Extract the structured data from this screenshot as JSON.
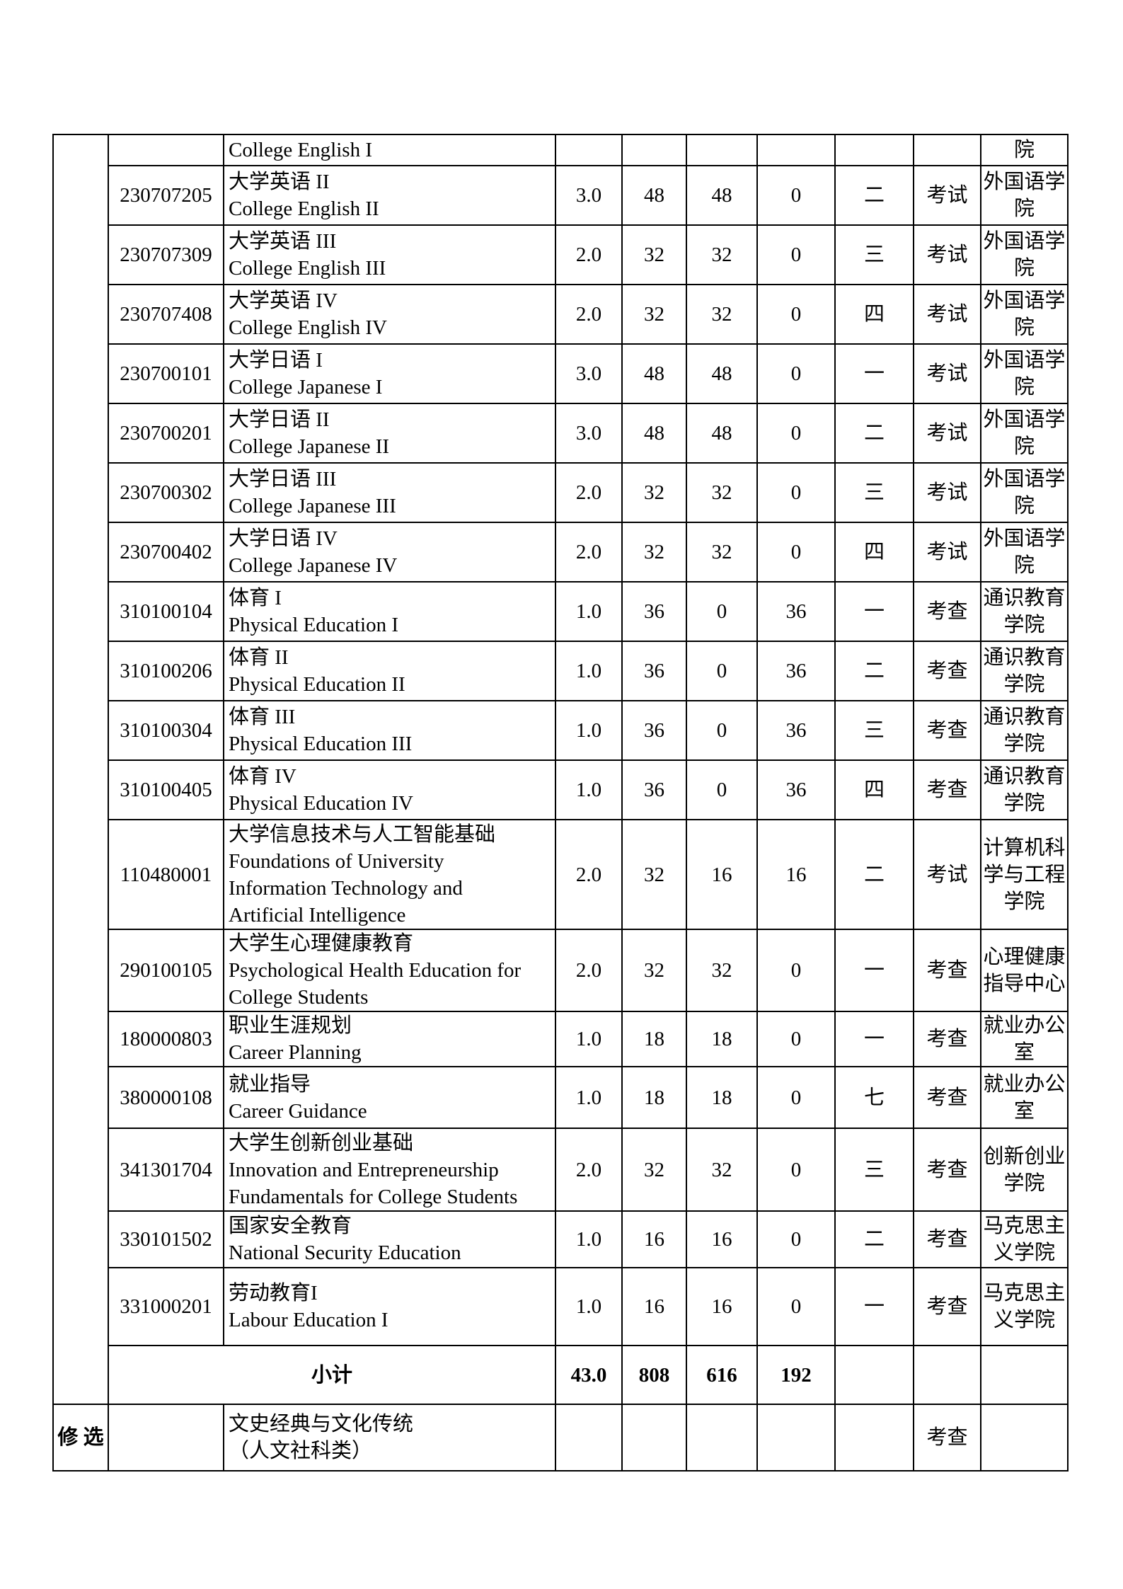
{
  "table": {
    "rows": [
      {
        "code": "",
        "zh": "",
        "en": "College English I",
        "credits": "",
        "total": "",
        "lecture": "",
        "practice": "",
        "semester": "",
        "exam": "",
        "dept": "院"
      },
      {
        "code": "230707205",
        "zh": "大学英语 II",
        "en": "College English II",
        "credits": "3.0",
        "total": "48",
        "lecture": "48",
        "practice": "0",
        "semester": "二",
        "exam": "考试",
        "dept": "外国语学\n院"
      },
      {
        "code": "230707309",
        "zh": "大学英语 III",
        "en": "College English III",
        "credits": "2.0",
        "total": "32",
        "lecture": "32",
        "practice": "0",
        "semester": "三",
        "exam": "考试",
        "dept": "外国语学\n院"
      },
      {
        "code": "230707408",
        "zh": "大学英语 IV",
        "en": "College English IV",
        "credits": "2.0",
        "total": "32",
        "lecture": "32",
        "practice": "0",
        "semester": "四",
        "exam": "考试",
        "dept": "外国语学\n院"
      },
      {
        "code": "230700101",
        "zh": "大学日语 I",
        "en": "College Japanese I",
        "credits": "3.0",
        "total": "48",
        "lecture": "48",
        "practice": "0",
        "semester": "一",
        "exam": "考试",
        "dept": "外国语学\n院"
      },
      {
        "code": "230700201",
        "zh": "大学日语 II",
        "en": "College Japanese II",
        "credits": "3.0",
        "total": "48",
        "lecture": "48",
        "practice": "0",
        "semester": "二",
        "exam": "考试",
        "dept": "外国语学\n院"
      },
      {
        "code": "230700302",
        "zh": "大学日语 III",
        "en": "College Japanese III",
        "credits": "2.0",
        "total": "32",
        "lecture": "32",
        "practice": "0",
        "semester": "三",
        "exam": "考试",
        "dept": "外国语学\n院"
      },
      {
        "code": "230700402",
        "zh": "大学日语 IV",
        "en": "College Japanese IV",
        "credits": "2.0",
        "total": "32",
        "lecture": "32",
        "practice": "0",
        "semester": "四",
        "exam": "考试",
        "dept": "外国语学\n院"
      },
      {
        "code": "310100104",
        "zh": "体育 I",
        "en": "Physical Education I",
        "credits": "1.0",
        "total": "36",
        "lecture": "0",
        "practice": "36",
        "semester": "一",
        "exam": "考查",
        "dept": "通识教育\n学院"
      },
      {
        "code": "310100206",
        "zh": "体育 II",
        "en": "Physical Education II",
        "credits": "1.0",
        "total": "36",
        "lecture": "0",
        "practice": "36",
        "semester": "二",
        "exam": "考查",
        "dept": "通识教育\n学院"
      },
      {
        "code": "310100304",
        "zh": "体育 III",
        "en": "Physical Education III",
        "credits": "1.0",
        "total": "36",
        "lecture": "0",
        "practice": "36",
        "semester": "三",
        "exam": "考查",
        "dept": "通识教育\n学院"
      },
      {
        "code": "310100405",
        "zh": "体育 IV",
        "en": "Physical Education IV",
        "credits": "1.0",
        "total": "36",
        "lecture": "0",
        "practice": "36",
        "semester": "四",
        "exam": "考查",
        "dept": "通识教育\n学院"
      },
      {
        "code": "110480001",
        "zh": "大学信息技术与人工智能基础",
        "en": "Foundations of University\nInformation Technology and\nArtificial Intelligence",
        "credits": "2.0",
        "total": "32",
        "lecture": "16",
        "practice": "16",
        "semester": "二",
        "exam": "考试",
        "dept": "计算机科\n学与工程\n学院"
      },
      {
        "code": "290100105",
        "zh": "大学生心理健康教育",
        "en": "Psychological Health Education for\nCollege Students",
        "credits": "2.0",
        "total": "32",
        "lecture": "32",
        "practice": "0",
        "semester": "一",
        "exam": "考查",
        "dept": "心理健康\n指导中心"
      },
      {
        "code": "180000803",
        "zh": "职业生涯规划",
        "en": "Career Planning",
        "credits": "1.0",
        "total": "18",
        "lecture": "18",
        "practice": "0",
        "semester": "一",
        "exam": "考查",
        "dept": "就业办公\n室"
      },
      {
        "code": "380000108",
        "zh": "就业指导",
        "en": "Career Guidance",
        "credits": "1.0",
        "total": "18",
        "lecture": "18",
        "practice": "0",
        "semester": "七",
        "exam": "考查",
        "dept": "就业办公\n室"
      },
      {
        "code": "341301704",
        "zh": "大学生创新创业基础",
        "en": "Innovation and Entrepreneurship\nFundamentals for College Students",
        "credits": "2.0",
        "total": "32",
        "lecture": "32",
        "practice": "0",
        "semester": "三",
        "exam": "考查",
        "dept": "创新创业\n学院"
      },
      {
        "code": "330101502",
        "zh": "国家安全教育",
        "en": "National Security Education",
        "credits": "1.0",
        "total": "16",
        "lecture": "16",
        "practice": "0",
        "semester": "二",
        "exam": "考查",
        "dept": "马克思主\n义学院"
      },
      {
        "code": "331000201",
        "zh": "劳动教育I",
        "en": "Labour Education I",
        "credits": "1.0",
        "total": "16",
        "lecture": "16",
        "practice": "0",
        "semester": "一",
        "exam": "考查",
        "dept": "马克思主\n义学院"
      }
    ],
    "subtotal": {
      "label": "小计",
      "credits": "43.0",
      "total": "808",
      "lecture": "616",
      "practice": "192"
    },
    "elective": {
      "category": "修 选",
      "name": "文史经典与文化传统\n（人文社科类）",
      "exam": "考查"
    }
  }
}
